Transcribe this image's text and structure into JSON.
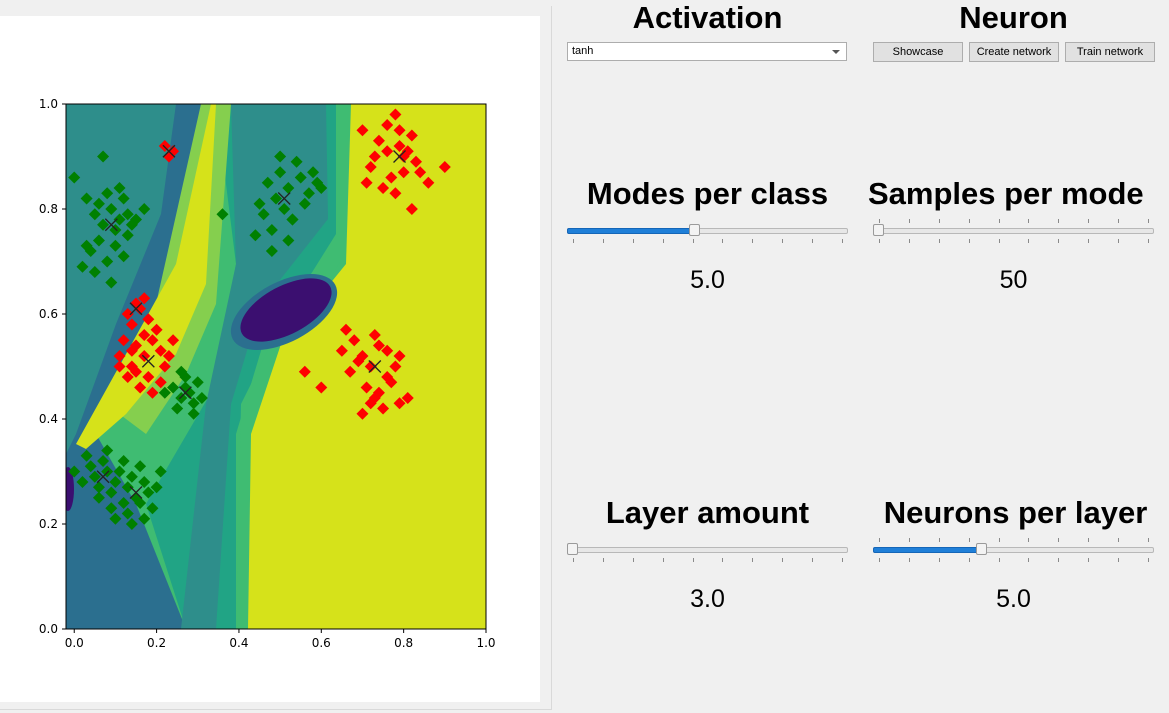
{
  "left_panel": {
    "chart_data": {
      "type": "scatter",
      "title": "",
      "xlabel": "",
      "ylabel": "",
      "xlim": [
        -0.02,
        1.0
      ],
      "ylim": [
        0.0,
        1.0
      ],
      "xticks": [
        "0.0",
        "0.2",
        "0.4",
        "0.6",
        "0.8",
        "1.0"
      ],
      "yticks": [
        "0.0",
        "0.2",
        "0.4",
        "0.6",
        "0.8",
        "1.0"
      ],
      "grid": false,
      "legend": "none",
      "background": "filled contour of network decision function (viridis colormap)",
      "colors": {
        "class_red": "#ff0000",
        "class_green": "#008000",
        "centroid_marker": "#222222",
        "contour_levels": [
          "#3b0f70",
          "#2b6f8f",
          "#2e8e8b",
          "#21a485",
          "#3fbc72",
          "#85cf4e",
          "#d6e21a"
        ]
      },
      "series": [
        {
          "name": "red",
          "marker": "diamond",
          "centroids": [
            [
              0.23,
              0.91
            ],
            [
              0.79,
              0.9
            ],
            [
              0.15,
              0.61
            ],
            [
              0.18,
              0.51
            ],
            [
              0.73,
              0.5
            ]
          ],
          "x": [
            0.22,
            0.24,
            0.23,
            0.7,
            0.74,
            0.76,
            0.78,
            0.79,
            0.8,
            0.82,
            0.84,
            0.72,
            0.77,
            0.81,
            0.83,
            0.86,
            0.75,
            0.78,
            0.8,
            0.73,
            0.71,
            0.9,
            0.79,
            0.76,
            0.82,
            0.13,
            0.15,
            0.16,
            0.14,
            0.17,
            0.12,
            0.15,
            0.11,
            0.14,
            0.17,
            0.19,
            0.21,
            0.22,
            0.18,
            0.16,
            0.2,
            0.23,
            0.15,
            0.13,
            0.19,
            0.24,
            0.17,
            0.21,
            0.11,
            0.14,
            0.18,
            0.65,
            0.68,
            0.7,
            0.72,
            0.74,
            0.76,
            0.78,
            0.71,
            0.73,
            0.75,
            0.77,
            0.67,
            0.69,
            0.73,
            0.79,
            0.81,
            0.7,
            0.74,
            0.76,
            0.72,
            0.56,
            0.6,
            0.79,
            0.66
          ],
          "y": [
            0.92,
            0.91,
            0.9,
            0.95,
            0.93,
            0.96,
            0.98,
            0.92,
            0.9,
            0.94,
            0.87,
            0.88,
            0.86,
            0.91,
            0.89,
            0.85,
            0.84,
            0.83,
            0.87,
            0.9,
            0.85,
            0.88,
            0.95,
            0.91,
            0.8,
            0.6,
            0.62,
            0.61,
            0.58,
            0.63,
            0.55,
            0.54,
            0.52,
            0.5,
            0.52,
            0.55,
            0.53,
            0.5,
            0.48,
            0.46,
            0.57,
            0.52,
            0.49,
            0.48,
            0.45,
            0.55,
            0.56,
            0.47,
            0.5,
            0.53,
            0.59,
            0.53,
            0.55,
            0.52,
            0.5,
            0.54,
            0.48,
            0.5,
            0.46,
            0.44,
            0.42,
            0.47,
            0.49,
            0.51,
            0.56,
            0.52,
            0.44,
            0.41,
            0.45,
            0.53,
            0.43,
            0.49,
            0.46,
            0.43,
            0.57
          ]
        },
        {
          "name": "green",
          "marker": "diamond",
          "centroids": [
            [
              0.09,
              0.77
            ],
            [
              0.51,
              0.82
            ],
            [
              0.27,
              0.45
            ],
            [
              0.07,
              0.29
            ],
            [
              0.15,
              0.26
            ]
          ],
          "x": [
            0.0,
            0.03,
            0.05,
            0.06,
            0.07,
            0.08,
            0.09,
            0.1,
            0.11,
            0.12,
            0.13,
            0.04,
            0.06,
            0.08,
            0.1,
            0.12,
            0.14,
            0.02,
            0.05,
            0.09,
            0.11,
            0.13,
            0.07,
            0.15,
            0.17,
            0.03,
            0.47,
            0.49,
            0.5,
            0.51,
            0.52,
            0.53,
            0.55,
            0.57,
            0.46,
            0.48,
            0.54,
            0.56,
            0.59,
            0.5,
            0.52,
            0.45,
            0.58,
            0.44,
            0.6,
            0.48,
            0.53,
            0.36,
            0.24,
            0.26,
            0.27,
            0.28,
            0.29,
            0.3,
            0.25,
            0.27,
            0.22,
            0.31,
            0.26,
            0.29,
            0.0,
            0.02,
            0.04,
            0.05,
            0.06,
            0.07,
            0.08,
            0.09,
            0.1,
            0.11,
            0.12,
            0.13,
            0.14,
            0.15,
            0.16,
            0.17,
            0.18,
            0.19,
            0.03,
            0.06,
            0.1,
            0.13,
            0.16,
            0.2,
            0.08,
            0.12,
            0.17,
            0.21,
            0.14,
            0.09
          ],
          "y": [
            0.86,
            0.82,
            0.79,
            0.81,
            0.77,
            0.83,
            0.8,
            0.76,
            0.78,
            0.82,
            0.75,
            0.72,
            0.74,
            0.7,
            0.73,
            0.71,
            0.77,
            0.69,
            0.68,
            0.66,
            0.84,
            0.79,
            0.9,
            0.78,
            0.8,
            0.73,
            0.85,
            0.82,
            0.87,
            0.8,
            0.84,
            0.78,
            0.86,
            0.83,
            0.79,
            0.76,
            0.89,
            0.81,
            0.85,
            0.9,
            0.74,
            0.81,
            0.87,
            0.75,
            0.84,
            0.72,
            0.78,
            0.79,
            0.46,
            0.44,
            0.48,
            0.45,
            0.43,
            0.47,
            0.42,
            0.46,
            0.45,
            0.44,
            0.49,
            0.41,
            0.3,
            0.28,
            0.31,
            0.29,
            0.27,
            0.32,
            0.3,
            0.26,
            0.28,
            0.3,
            0.24,
            0.27,
            0.29,
            0.25,
            0.31,
            0.28,
            0.26,
            0.23,
            0.33,
            0.25,
            0.21,
            0.22,
            0.24,
            0.27,
            0.34,
            0.32,
            0.21,
            0.3,
            0.2,
            0.23
          ]
        }
      ]
    }
  },
  "activation": {
    "title": "Activation",
    "selected": "tanh"
  },
  "neuron": {
    "title": "Neuron",
    "buttons": {
      "showcase": "Showcase",
      "create": "Create network",
      "train": "Train network"
    }
  },
  "modes_per_class": {
    "title": "Modes per class",
    "value_text": "5.0",
    "level_fraction": 0.45
  },
  "samples_per_mode": {
    "title": "Samples per mode",
    "value_text": "50",
    "level_fraction": 0.0
  },
  "layer_amount": {
    "title": "Layer amount",
    "value_text": "3.0",
    "level_fraction": 0.0
  },
  "neurons_per_layer": {
    "title": "Neurons per layer",
    "value_text": "5.0",
    "level_fraction": 0.38
  }
}
